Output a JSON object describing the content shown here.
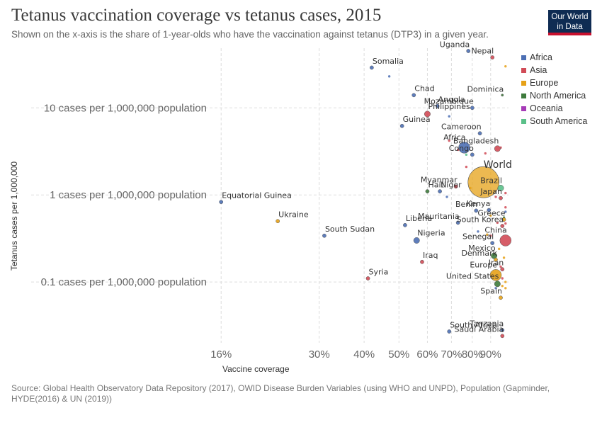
{
  "header": {
    "title": "Tetanus vaccination coverage vs tetanus cases, 2015",
    "subtitle": "Shown on the x-axis is the share of 1-year-olds who have the vaccination against tetanus (DTP3) in a given year."
  },
  "logo": {
    "line1": "Our World",
    "line2": "in Data"
  },
  "legend": {
    "items": [
      {
        "label": "Africa",
        "color": "#4c6fb4"
      },
      {
        "label": "Asia",
        "color": "#d14b57"
      },
      {
        "label": "Europe",
        "color": "#e6a117"
      },
      {
        "label": "North America",
        "color": "#3e7b3c"
      },
      {
        "label": "Oceania",
        "color": "#a63bb7"
      },
      {
        "label": "South America",
        "color": "#5bc089"
      }
    ]
  },
  "footer": {
    "source": "Source: Global Health Observatory Data Repository (2017), OWID Disease Burden Variables (using WHO and UNPD), Population (Gapminder, HYDE(2016) & UN (2019))"
  },
  "chart_data": {
    "type": "scatter",
    "title": "Tetanus vaccination coverage vs tetanus cases, 2015",
    "xlabel": "Vaccine coverage",
    "ylabel": "Tetanus cases per 1,000,000",
    "xscale": "log",
    "yscale": "log",
    "xlim": [
      15,
      100
    ],
    "ylim": [
      0.02,
      45
    ],
    "x_ticks": [
      {
        "value": 16,
        "label": "16%"
      },
      {
        "value": 30,
        "label": "30%"
      },
      {
        "value": 40,
        "label": "40%"
      },
      {
        "value": 50,
        "label": "50%"
      },
      {
        "value": 60,
        "label": "60%"
      },
      {
        "value": 70,
        "label": "70%"
      },
      {
        "value": 80,
        "label": "80%"
      },
      {
        "value": 90,
        "label": "90%"
      }
    ],
    "y_ticks": [
      {
        "value": 10,
        "label": "10 cases per 1,000,000 population"
      },
      {
        "value": 1,
        "label": "1 cases per 1,000,000 population"
      },
      {
        "value": 0.1,
        "label": "0.1 cases per 1,000,000 population"
      }
    ],
    "grid": true,
    "legend_position": "right",
    "labeled_points": [
      {
        "label": "Uganda",
        "x": 78,
        "y": 45,
        "region": "Africa",
        "size": "small"
      },
      {
        "label": "Nepal",
        "x": 91,
        "y": 38,
        "region": "Asia",
        "size": "small"
      },
      {
        "label": "Somalia",
        "x": 42,
        "y": 29,
        "region": "Africa",
        "size": "small"
      },
      {
        "label": "Chad",
        "x": 55,
        "y": 14,
        "region": "Africa",
        "size": "small"
      },
      {
        "label": "Dominica",
        "x": 97,
        "y": 14,
        "region": "North America",
        "size": "tiny"
      },
      {
        "label": "Angola",
        "x": 64,
        "y": 10.5,
        "region": "Africa",
        "size": "small"
      },
      {
        "label": "Mozambique",
        "x": 80,
        "y": 10,
        "region": "Africa",
        "size": "small"
      },
      {
        "label": "Philippines",
        "x": 60,
        "y": 8.5,
        "region": "Asia",
        "size": "medium"
      },
      {
        "label": "Guinea",
        "x": 51,
        "y": 6.2,
        "region": "Africa",
        "size": "small"
      },
      {
        "label": "Cameroon",
        "x": 84,
        "y": 5.1,
        "region": "Africa",
        "size": "small"
      },
      {
        "label": "Africa",
        "x": 76,
        "y": 3.5,
        "region": "Africa",
        "size": "large"
      },
      {
        "label": "Bangladesh",
        "x": 94,
        "y": 3.4,
        "region": "Asia",
        "size": "medium"
      },
      {
        "label": "Congo",
        "x": 80,
        "y": 2.9,
        "region": "Africa",
        "size": "small"
      },
      {
        "label": "World",
        "x": 86,
        "y": 1.4,
        "region": "Europe",
        "size": "huge"
      },
      {
        "label": "Brazil",
        "x": 96,
        "y": 1.2,
        "region": "South America",
        "size": "medium"
      },
      {
        "label": "Myanmar",
        "x": 72,
        "y": 1.25,
        "region": "Asia",
        "size": "small"
      },
      {
        "label": "Haiti",
        "x": 60,
        "y": 1.1,
        "region": "North America",
        "size": "small"
      },
      {
        "label": "Niger",
        "x": 65,
        "y": 1.1,
        "region": "Africa",
        "size": "small"
      },
      {
        "label": "Japan",
        "x": 96,
        "y": 0.92,
        "region": "Asia",
        "size": "small"
      },
      {
        "label": "Equatorial Guinea",
        "x": 16,
        "y": 0.83,
        "region": "Africa",
        "size": "small"
      },
      {
        "label": "Benin",
        "x": 82,
        "y": 0.66,
        "region": "Africa",
        "size": "small"
      },
      {
        "label": "Kenya",
        "x": 89,
        "y": 0.67,
        "region": "Africa",
        "size": "small"
      },
      {
        "label": "Greece",
        "x": 98,
        "y": 0.52,
        "region": "Europe",
        "size": "small"
      },
      {
        "label": "Ukraine",
        "x": 23,
        "y": 0.5,
        "region": "Europe",
        "size": "small"
      },
      {
        "label": "Mauritania",
        "x": 73,
        "y": 0.48,
        "region": "Africa",
        "size": "small"
      },
      {
        "label": "South Korea",
        "x": 97,
        "y": 0.44,
        "region": "Asia",
        "size": "small"
      },
      {
        "label": "Liberia",
        "x": 52,
        "y": 0.45,
        "region": "Africa",
        "size": "small"
      },
      {
        "label": "South Sudan",
        "x": 31,
        "y": 0.34,
        "region": "Africa",
        "size": "small"
      },
      {
        "label": "China",
        "x": 99,
        "y": 0.3,
        "region": "Asia",
        "size": "large"
      },
      {
        "label": "Nigeria",
        "x": 56,
        "y": 0.3,
        "region": "Africa",
        "size": "medium"
      },
      {
        "label": "Senegal",
        "x": 91,
        "y": 0.28,
        "region": "Africa",
        "size": "small"
      },
      {
        "label": "Mexico",
        "x": 92,
        "y": 0.2,
        "region": "North America",
        "size": "medium"
      },
      {
        "label": "Denmark",
        "x": 93,
        "y": 0.18,
        "region": "Europe",
        "size": "small"
      },
      {
        "label": "Iraq",
        "x": 58,
        "y": 0.17,
        "region": "Asia",
        "size": "small"
      },
      {
        "label": "Iran",
        "x": 97,
        "y": 0.14,
        "region": "Asia",
        "size": "small"
      },
      {
        "label": "Europe",
        "x": 93,
        "y": 0.12,
        "region": "Europe",
        "size": "large"
      },
      {
        "label": "Syria",
        "x": 41,
        "y": 0.11,
        "region": "Asia",
        "size": "small"
      },
      {
        "label": "United States",
        "x": 94,
        "y": 0.095,
        "region": "North America",
        "size": "medium"
      },
      {
        "label": "Spain",
        "x": 96,
        "y": 0.066,
        "region": "Europe",
        "size": "small"
      },
      {
        "label": "Tanzania",
        "x": 97,
        "y": 0.028,
        "region": "Africa",
        "size": "small"
      },
      {
        "label": "South Africa",
        "x": 69,
        "y": 0.027,
        "region": "Africa",
        "size": "small"
      },
      {
        "label": "Saudi Arabia",
        "x": 97,
        "y": 0.024,
        "region": "Asia",
        "size": "small"
      }
    ],
    "unlabeled_points": [
      {
        "x": 47,
        "y": 23,
        "region": "Africa"
      },
      {
        "x": 99,
        "y": 30,
        "region": "Europe"
      },
      {
        "x": 69,
        "y": 8,
        "region": "Africa"
      },
      {
        "x": 69,
        "y": 4.2,
        "region": "Asia"
      },
      {
        "x": 73,
        "y": 3.3,
        "region": "Asia"
      },
      {
        "x": 87,
        "y": 3.0,
        "region": "Asia"
      },
      {
        "x": 96,
        "y": 3.5,
        "region": "Asia"
      },
      {
        "x": 77,
        "y": 2.9,
        "region": "South America"
      },
      {
        "x": 77,
        "y": 2.1,
        "region": "Asia"
      },
      {
        "x": 68,
        "y": 0.95,
        "region": "Africa"
      },
      {
        "x": 79,
        "y": 1.2,
        "region": "Europe"
      },
      {
        "x": 99,
        "y": 1.05,
        "region": "Asia"
      },
      {
        "x": 93,
        "y": 0.95,
        "region": "Asia"
      },
      {
        "x": 99,
        "y": 0.72,
        "region": "Asia"
      },
      {
        "x": 99,
        "y": 0.64,
        "region": "Africa"
      },
      {
        "x": 90,
        "y": 0.58,
        "region": "Europe"
      },
      {
        "x": 98,
        "y": 0.55,
        "region": "North America"
      },
      {
        "x": 94,
        "y": 0.48,
        "region": "Asia"
      },
      {
        "x": 99,
        "y": 0.47,
        "region": "Asia"
      },
      {
        "x": 83,
        "y": 0.38,
        "region": "Africa"
      },
      {
        "x": 88,
        "y": 0.35,
        "region": "Europe"
      },
      {
        "x": 90,
        "y": 0.34,
        "region": "Asia"
      },
      {
        "x": 95,
        "y": 0.24,
        "region": "Europe"
      },
      {
        "x": 98,
        "y": 0.19,
        "region": "Europe"
      },
      {
        "x": 96,
        "y": 0.15,
        "region": "Asia"
      },
      {
        "x": 97,
        "y": 0.11,
        "region": "Asia"
      },
      {
        "x": 99,
        "y": 0.1,
        "region": "Europe"
      },
      {
        "x": 97,
        "y": 0.09,
        "region": "Europe"
      },
      {
        "x": 93,
        "y": 0.085,
        "region": "Africa"
      },
      {
        "x": 99,
        "y": 0.085,
        "region": "Europe"
      }
    ]
  }
}
